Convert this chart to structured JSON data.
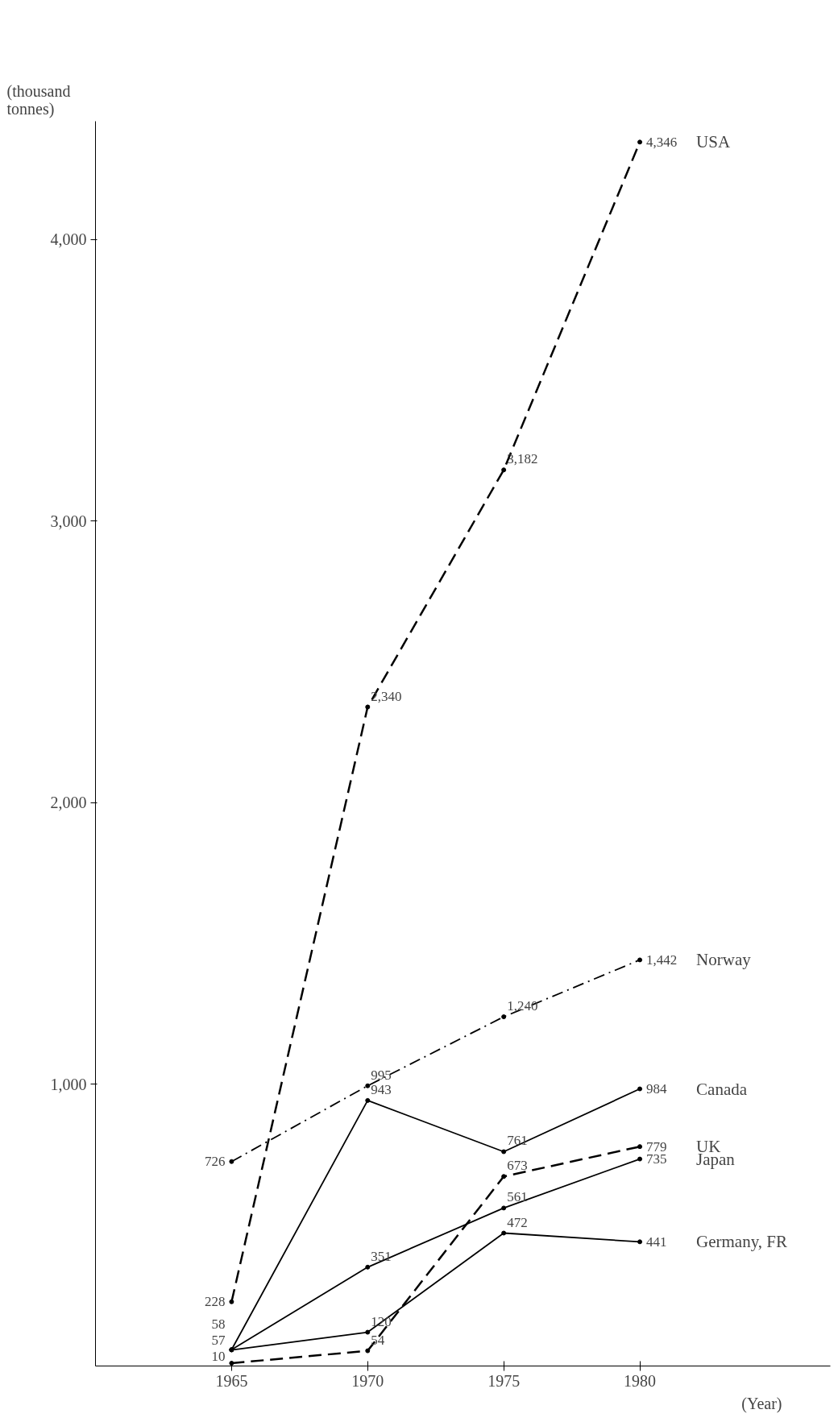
{
  "chart_data": {
    "type": "line",
    "ylabel": "(thousand tonnes)",
    "xlabel": "(Year)",
    "x": [
      1965,
      1970,
      1975,
      1980
    ],
    "xlim": [
      1960,
      1987
    ],
    "xticks": [
      1965,
      1970,
      1975,
      1980
    ],
    "ylim": [
      0,
      4420
    ],
    "yticks": [
      {
        "value": 1000,
        "label": "1,000"
      },
      {
        "value": 2000,
        "label": "2,000"
      },
      {
        "value": 3000,
        "label": "3,000"
      },
      {
        "value": 4000,
        "label": "4,000"
      }
    ],
    "grid": false,
    "legend": false,
    "marker": "circle",
    "series": [
      {
        "name": "USA",
        "color": "#000000",
        "line_style": "dashed",
        "values": [
          228,
          2340,
          3182,
          4346
        ],
        "value_labels": [
          "228",
          "2,340",
          "3,182",
          "4,346"
        ]
      },
      {
        "name": "Norway",
        "color": "#000000",
        "line_style": "dashdot",
        "values": [
          726,
          995,
          1240,
          1442
        ],
        "value_labels": [
          "726",
          "995",
          "1,240",
          "1,442"
        ]
      },
      {
        "name": "Canada",
        "color": "#000000",
        "line_style": "solid",
        "values": [
          58,
          943,
          761,
          984
        ],
        "value_labels": [
          null,
          "943",
          "761",
          "984"
        ]
      },
      {
        "name": "UK",
        "color": "#000000",
        "line_style": "dashed",
        "values": [
          10,
          54,
          673,
          779
        ],
        "value_labels": [
          "10",
          "54",
          "673",
          "779"
        ]
      },
      {
        "name": "Japan",
        "color": "#000000",
        "line_style": "solid",
        "values": [
          58,
          351,
          561,
          735
        ],
        "value_labels": [
          "58",
          "351",
          "561",
          "735"
        ]
      },
      {
        "name": "Germany, FR",
        "color": "#000000",
        "line_style": "solid",
        "values": [
          57,
          120,
          472,
          441
        ],
        "value_labels": [
          "57",
          "120",
          "472",
          "441"
        ]
      }
    ]
  }
}
